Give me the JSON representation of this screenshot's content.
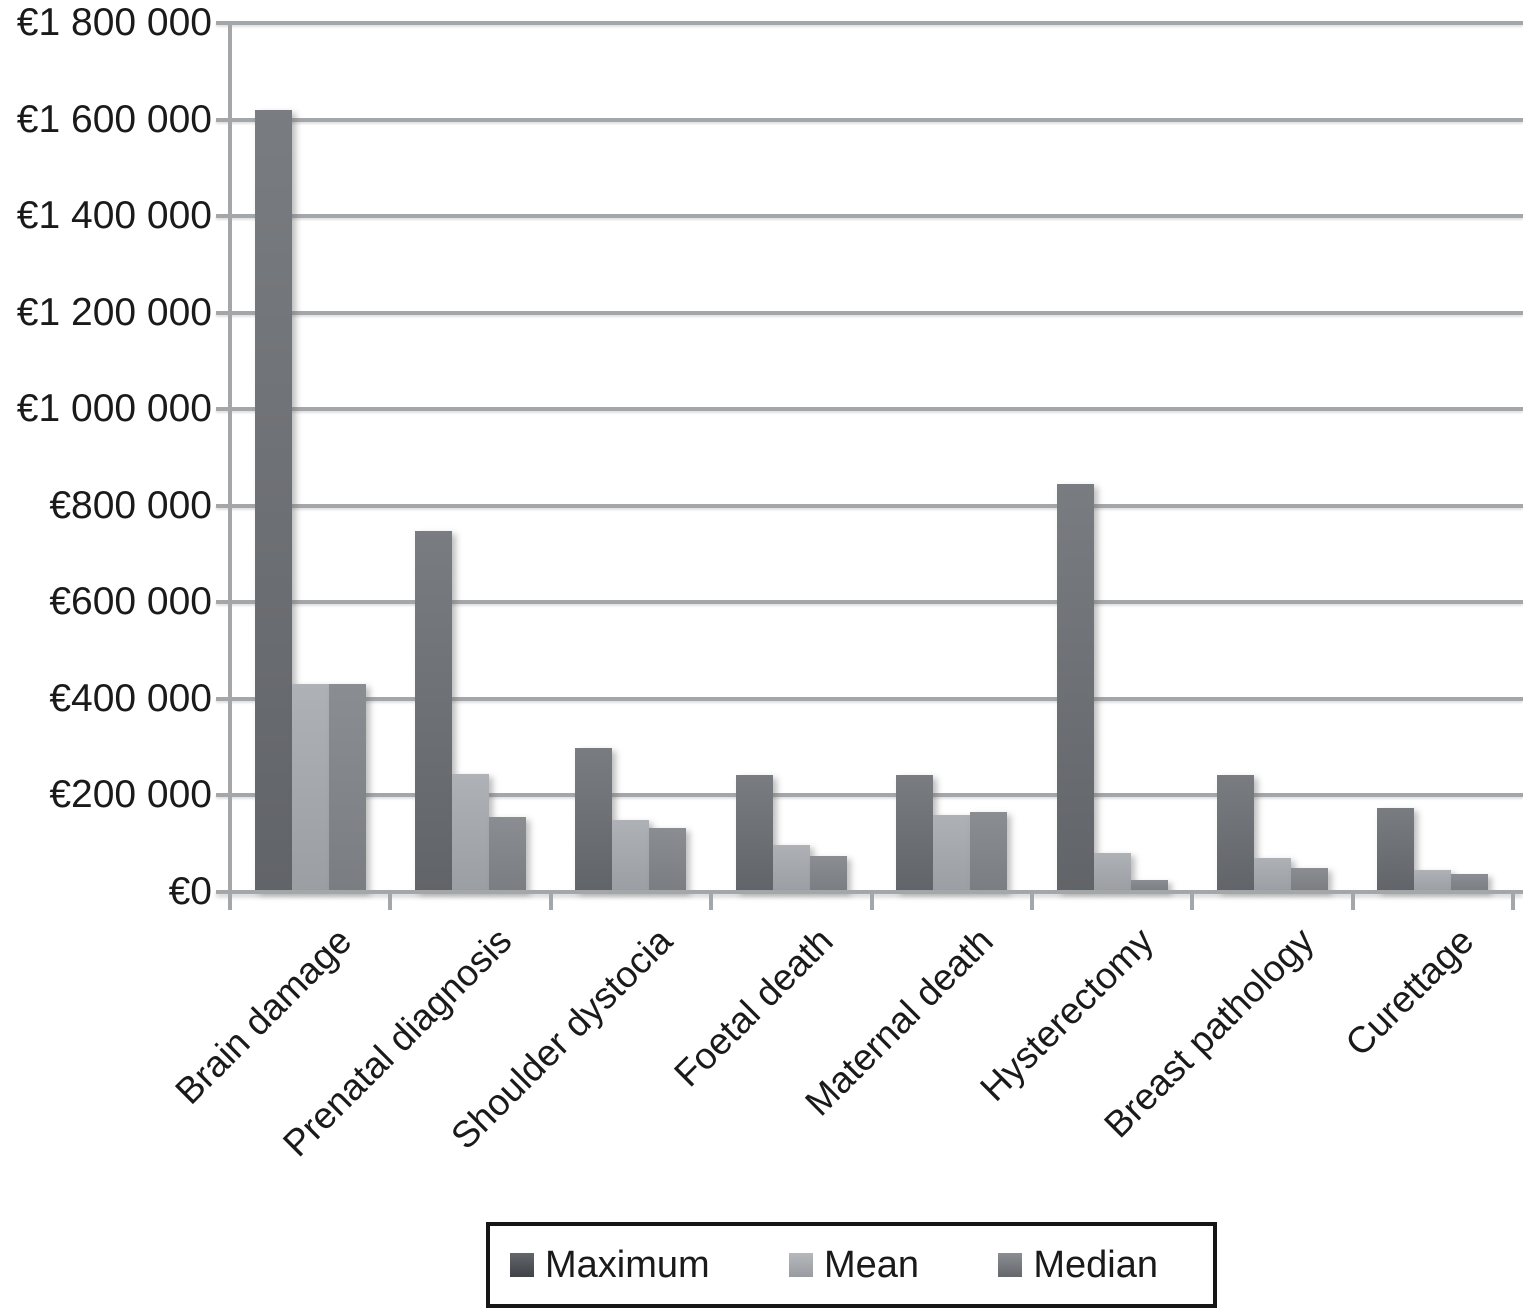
{
  "chart_data": {
    "type": "bar",
    "title": "",
    "xlabel": "",
    "ylabel": "",
    "grid": true,
    "legend_position": "bottom",
    "categories": [
      "Brain damage",
      "Prenatal diagnosis",
      "Shoulder dystocia",
      "Foetal death",
      "Maternal death",
      "Hysterectomy",
      "Breast pathology",
      "Curettage"
    ],
    "series": [
      {
        "name": "Maximum",
        "values": [
          1620000,
          747000,
          298000,
          243000,
          243000,
          845000,
          243000,
          175000
        ],
        "bar_color_top": "#797c80",
        "bar_color_bottom": "#616468",
        "key_color_top": "#63666b",
        "key_color_bottom": "#3f4246"
      },
      {
        "name": "Mean",
        "values": [
          430000,
          245000,
          150000,
          97000,
          160000,
          80000,
          70000,
          45000
        ],
        "bar_color_top": "#aeb1b5",
        "bar_color_bottom": "#9b9ea2",
        "key_color_top": "#b6b9bc",
        "key_color_bottom": "#989ba0"
      },
      {
        "name": "Median",
        "values": [
          430000,
          155000,
          132000,
          75000,
          166000,
          25000,
          50000,
          38000
        ],
        "bar_color_top": "#8a8d91",
        "bar_color_bottom": "#7a7d81",
        "key_color_top": "#8b8e92",
        "key_color_bottom": "#64676b"
      }
    ],
    "y_axis": {
      "min": 0,
      "max": 1800000,
      "step": 200000,
      "tick_labels_top_to_bottom": [
        "€1 800 000",
        "€1 600 000",
        "€1 400 000",
        "€1 200 000",
        "€1 000 000",
        "€800 000",
        "€600 000",
        "€400 000",
        "€200 000",
        "€0"
      ]
    }
  },
  "colors": {
    "axis": "#a4a7aa",
    "text": "#1a1a1a",
    "legend_border": "#161616",
    "background": "#ffffff"
  }
}
